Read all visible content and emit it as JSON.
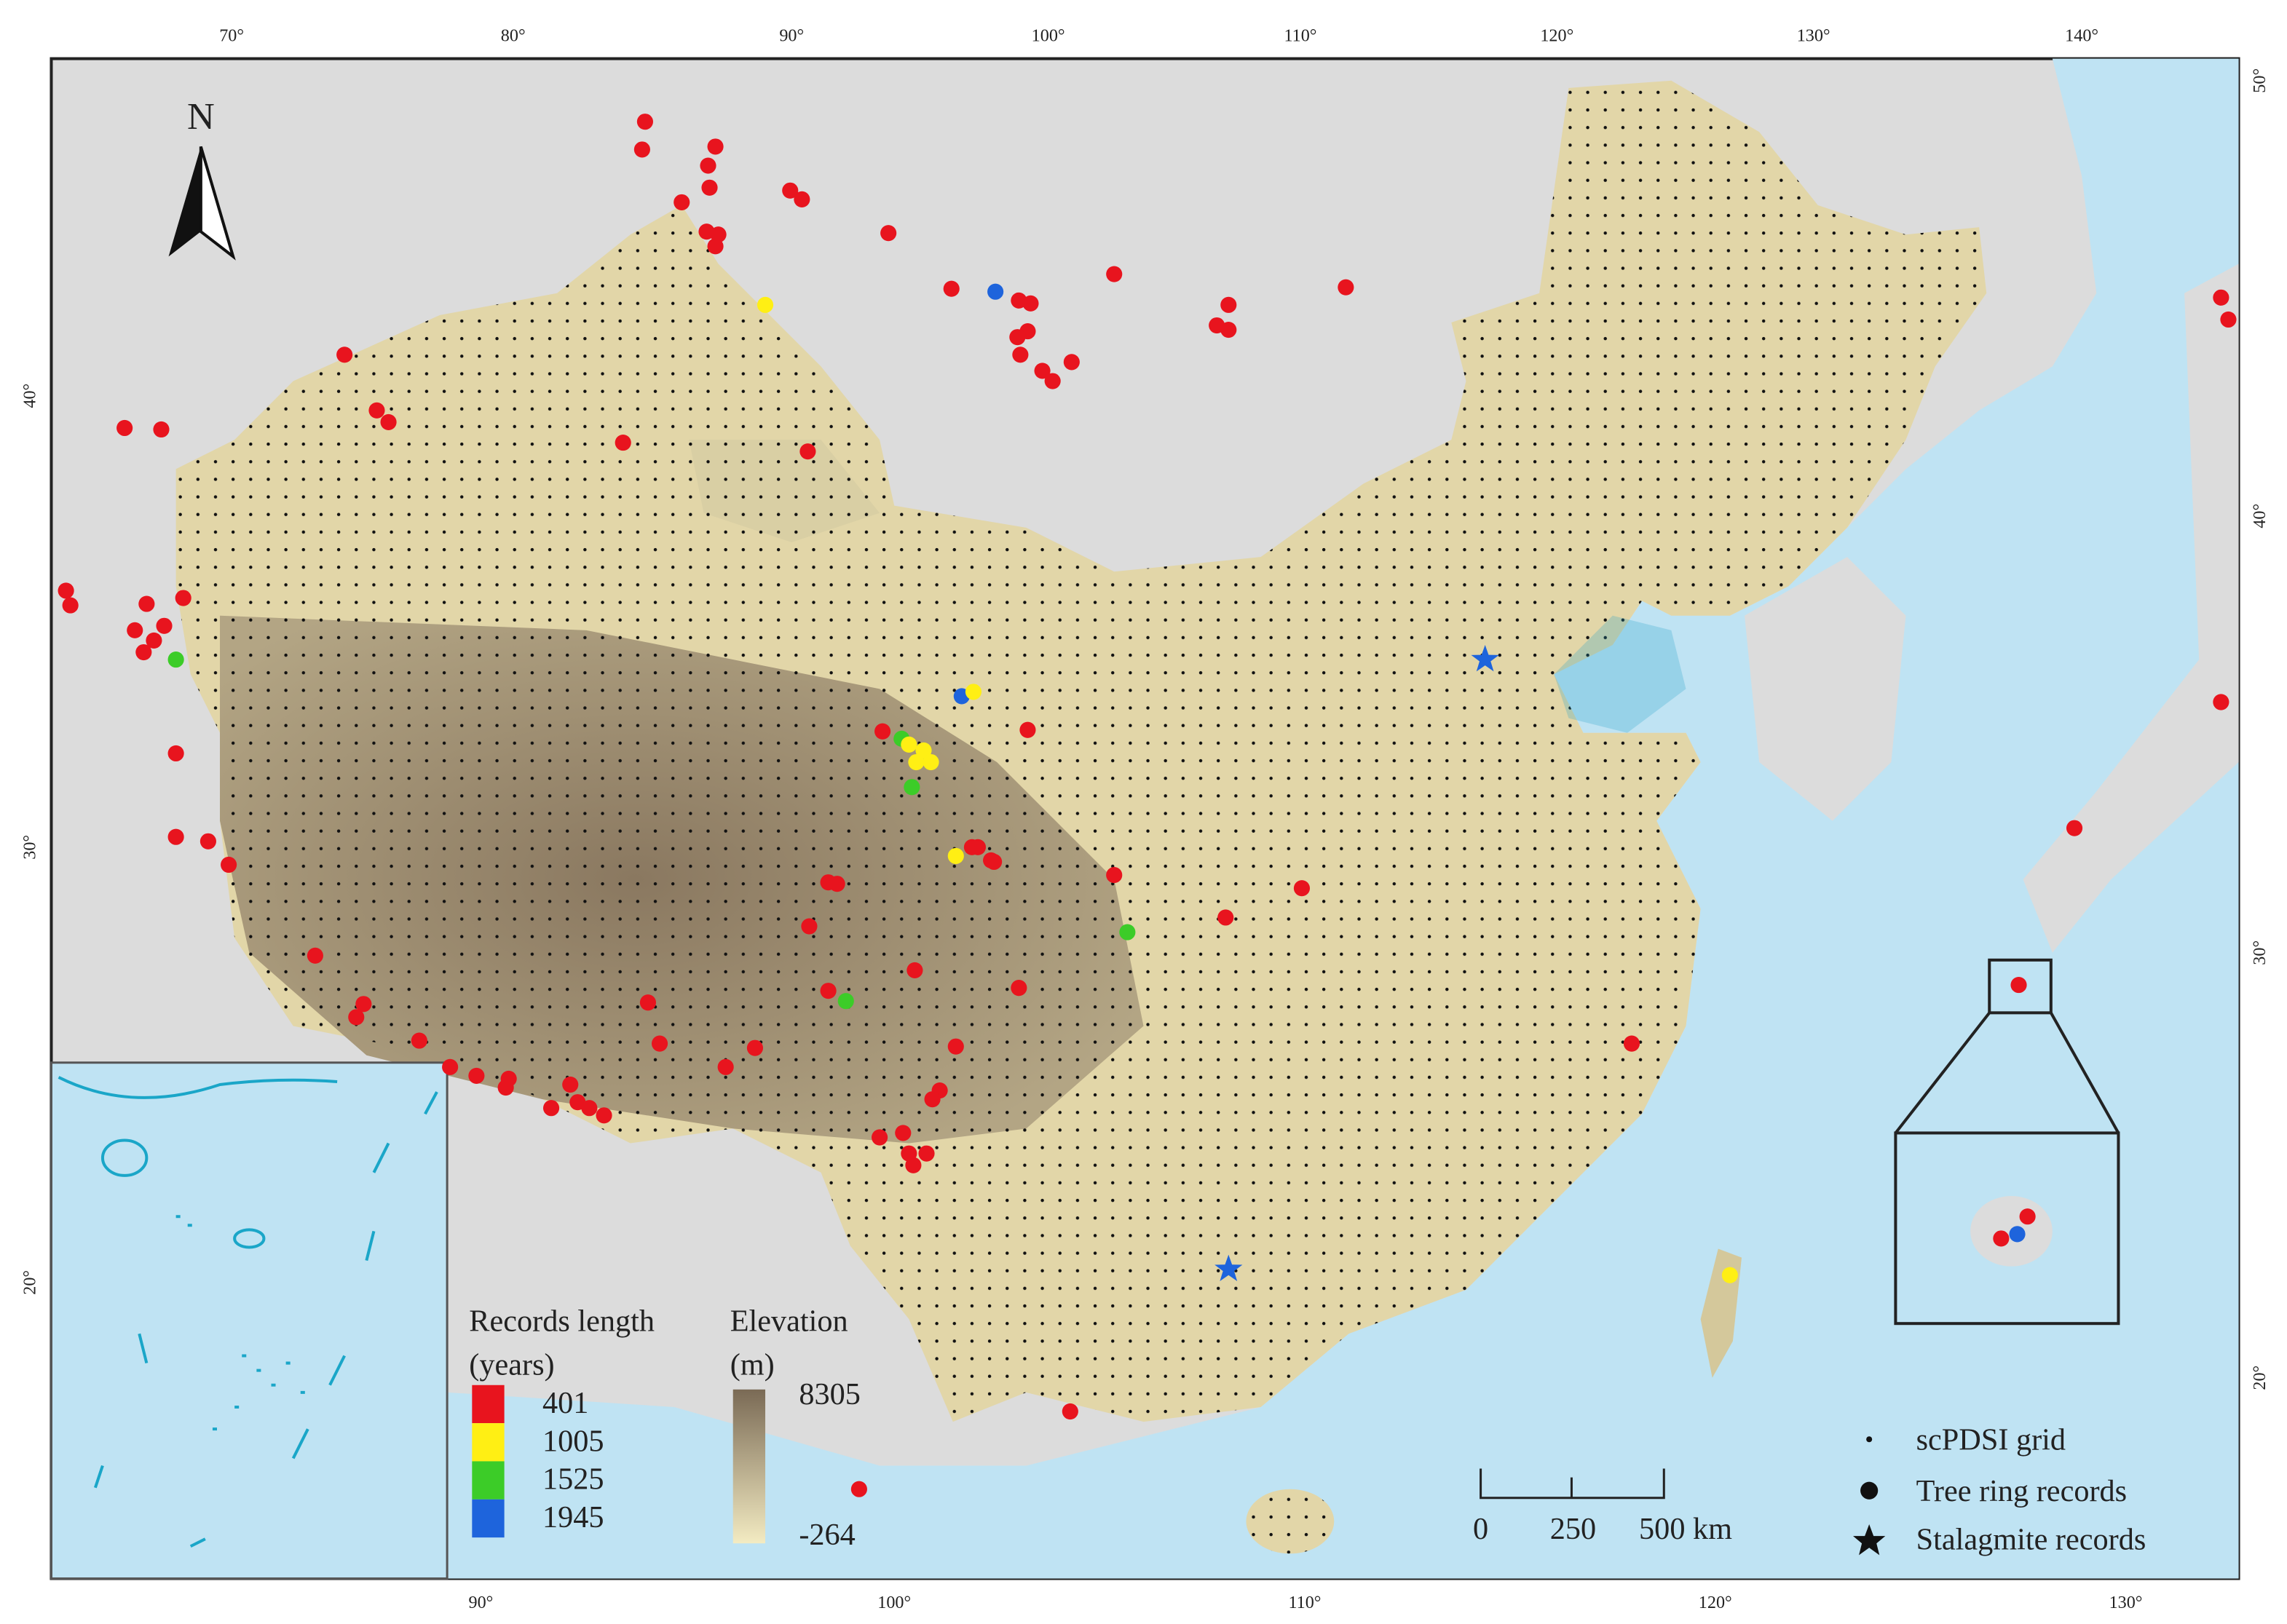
{
  "map": {
    "north": "N",
    "top_labels": [
      "70°",
      "80°",
      "90°",
      "100°",
      "110°",
      "120°",
      "130°",
      "140°"
    ],
    "bottom_labels": [
      "90°",
      "100°",
      "110°",
      "120°",
      "130°"
    ],
    "left_labels": [
      "40°",
      "30°",
      "20°"
    ],
    "right_labels": [
      "50°",
      "40°",
      "30°",
      "20°"
    ],
    "records_legend": {
      "title_line1": "Records length",
      "title_line2": "(years)",
      "items": [
        "401",
        "1005",
        "1525",
        "1945"
      ]
    },
    "elevation_legend": {
      "title_line1": "Elevation",
      "title_line2": "(m)",
      "max": "8305",
      "min": "-264"
    },
    "scale_bar": [
      "0",
      "250",
      "500 km"
    ],
    "symbol_legend": [
      "scPDSI grid",
      "Tree ring records",
      "Stalagmite records"
    ]
  }
}
